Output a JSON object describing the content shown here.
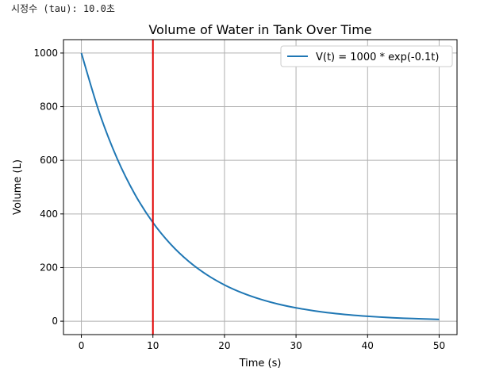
{
  "note": "시정수 (tau): 10.0초",
  "chart_data": {
    "type": "line",
    "title": "Volume of Water in Tank Over Time",
    "xlabel": "Time (s)",
    "ylabel": "Volume (L)",
    "xlim": [
      -2.5,
      52.5
    ],
    "ylim": [
      -50,
      1050
    ],
    "xticks": [
      0,
      10,
      20,
      30,
      40,
      50
    ],
    "yticks": [
      0,
      200,
      400,
      600,
      800,
      1000
    ],
    "grid": true,
    "legend": "top-right",
    "series": [
      {
        "name": "V(t) = 1000 * exp(-0.1t)",
        "color": "#1f77b4",
        "x": [
          0,
          2.5,
          5,
          7.5,
          10,
          12.5,
          15,
          17.5,
          20,
          22.5,
          25,
          27.5,
          30,
          32.5,
          35,
          37.5,
          40,
          42.5,
          45,
          47.5,
          50
        ],
        "y": [
          1000,
          778.8,
          606.5,
          472.4,
          367.9,
          286.5,
          223.1,
          173.8,
          135.3,
          105.4,
          82.1,
          63.9,
          49.8,
          38.8,
          30.2,
          23.5,
          18.3,
          14.3,
          11.1,
          8.7,
          6.7
        ]
      }
    ],
    "vline": {
      "x": 10,
      "color": "#e00000"
    }
  }
}
